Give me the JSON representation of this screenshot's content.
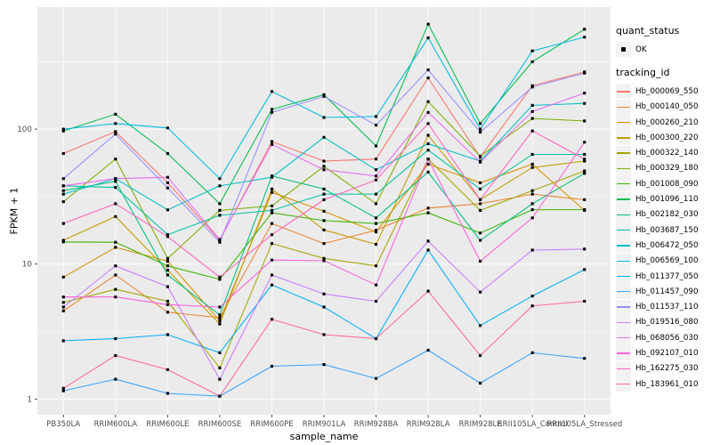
{
  "axes": {
    "x_title": "sample_name",
    "y_title": "FPKM + 1"
  },
  "legend": {
    "quant_status_title": "quant_status",
    "quant_status_value": "OK",
    "quant_status_marker": "black-square-point",
    "tracking_id_title": "tracking_id"
  },
  "style": {
    "panel_bg": "#EBEBEB",
    "grid_color": "#FFFFFF",
    "tick_mark_color": "#333333",
    "tick_label_color": "#4D4D4D",
    "marker_color": "#000000",
    "legend_key_bg": "#F2F2F2"
  },
  "chart_data": {
    "type": "line",
    "title": "",
    "xlabel": "sample_name",
    "ylabel": "FPKM + 1",
    "y_scale": "log10",
    "y_ticks": [
      1,
      10,
      100
    ],
    "y_minor_ticks": [
      3.162,
      31.62,
      316.2
    ],
    "ylim": [
      0.76,
      800
    ],
    "grid": true,
    "legend_position": "right",
    "point_marker": {
      "shape": "square",
      "color": "#000000",
      "label": "OK"
    },
    "categories": [
      "PB350LA",
      "RRIM600LA",
      "RRIM600LE",
      "RRIM600SE",
      "RRIM600PE",
      "RRIM901LA",
      "RRIM928BA",
      "RRIM928LA",
      "RRIM928LE",
      "RRII105LA_Control",
      "RRII105LA_Stressed"
    ],
    "series": [
      {
        "name": "Hb_000069_550",
        "color": "#F8766D",
        "values": [
          66,
          96,
          40,
          15,
          81,
          58,
          60,
          240,
          62,
          210,
          265
        ]
      },
      {
        "name": "Hb_000140_050",
        "color": "#EA8331",
        "values": [
          4.5,
          8.3,
          4.4,
          4.0,
          20,
          14.2,
          17.8,
          26,
          28,
          33,
          30
        ]
      },
      {
        "name": "Hb_000260_210",
        "color": "#D89000",
        "values": [
          8.0,
          13.3,
          10.5,
          3.8,
          34,
          24.6,
          17.3,
          55,
          40,
          55,
          25
        ]
      },
      {
        "name": "Hb_000300_220",
        "color": "#C09B00",
        "values": [
          15,
          22.5,
          9.0,
          3.6,
          36,
          17.9,
          14,
          90,
          30,
          52,
          58
        ]
      },
      {
        "name": "Hb_000322_140",
        "color": "#A3A500",
        "values": [
          5.2,
          6.5,
          5.3,
          1.7,
          14.2,
          11,
          9.7,
          60,
          25,
          35,
          49
        ]
      },
      {
        "name": "Hb_000329_180",
        "color": "#7CAE00",
        "values": [
          29,
          60,
          11,
          25,
          27,
          53,
          28,
          160,
          63,
          120,
          115
        ]
      },
      {
        "name": "Hb_001008_090",
        "color": "#39B600",
        "values": [
          14.6,
          14.5,
          9.7,
          7.7,
          24,
          21,
          20,
          24,
          17,
          25.3,
          25.3
        ]
      },
      {
        "name": "Hb_001096_110",
        "color": "#00BB4E",
        "values": [
          97,
          129,
          66,
          28,
          140,
          180,
          75,
          600,
          110,
          316,
          550
        ]
      },
      {
        "name": "Hb_002182_030",
        "color": "#00BF7D",
        "values": [
          35,
          41,
          8.3,
          4.2,
          45,
          36,
          22,
          48,
          15,
          28,
          47
        ]
      },
      {
        "name": "Hb_003687_150",
        "color": "#00C1A3",
        "values": [
          38,
          37,
          16.5,
          23,
          25,
          33,
          33,
          70,
          36,
          65,
          65
        ]
      },
      {
        "name": "Hb_006472_050",
        "color": "#00BFC4",
        "values": [
          33,
          43,
          25.2,
          38,
          44,
          87,
          50,
          78,
          58,
          150,
          155
        ]
      },
      {
        "name": "Hb_006569_100",
        "color": "#00BAE0",
        "values": [
          100,
          110,
          102,
          43,
          190,
          122,
          124,
          475,
          100,
          380,
          480
        ]
      },
      {
        "name": "Hb_011377_050",
        "color": "#00B0F6",
        "values": [
          2.7,
          2.8,
          3.0,
          2.2,
          7.0,
          4.8,
          2.8,
          12.7,
          3.5,
          5.8,
          9.1
        ]
      },
      {
        "name": "Hb_011457_090",
        "color": "#35A2FF",
        "values": [
          1.15,
          1.4,
          1.1,
          1.05,
          1.75,
          1.8,
          1.42,
          2.3,
          1.31,
          2.2,
          2.0
        ]
      },
      {
        "name": "Hb_011537_110",
        "color": "#9590FF",
        "values": [
          43,
          92,
          36.7,
          14.5,
          133,
          175,
          107,
          275,
          95,
          205,
          260
        ]
      },
      {
        "name": "Hb_019516_080",
        "color": "#C77CFF",
        "values": [
          4.8,
          9.7,
          6.8,
          1.4,
          8.3,
          6.0,
          5.3,
          14.8,
          6.2,
          12.7,
          12.9
        ]
      },
      {
        "name": "Hb_068056_030",
        "color": "#E76BF3",
        "values": [
          38,
          43,
          44,
          15.2,
          77,
          50,
          45,
          133,
          57,
          135,
          185
        ]
      },
      {
        "name": "Hb_092107_010",
        "color": "#FA62DB",
        "values": [
          5.7,
          5.7,
          5.0,
          4.8,
          10.7,
          10.6,
          7.0,
          60,
          10.5,
          22,
          80
        ]
      },
      {
        "name": "Hb_162275_030",
        "color": "#FF62BC",
        "values": [
          20,
          28,
          16,
          8.0,
          16.5,
          30,
          42,
          110,
          30,
          97,
          60
        ]
      },
      {
        "name": "Hb_183961_010",
        "color": "#FF6A98",
        "values": [
          1.2,
          2.1,
          1.65,
          1.05,
          3.9,
          3.0,
          2.8,
          6.3,
          2.1,
          4.9,
          5.3
        ]
      }
    ]
  }
}
